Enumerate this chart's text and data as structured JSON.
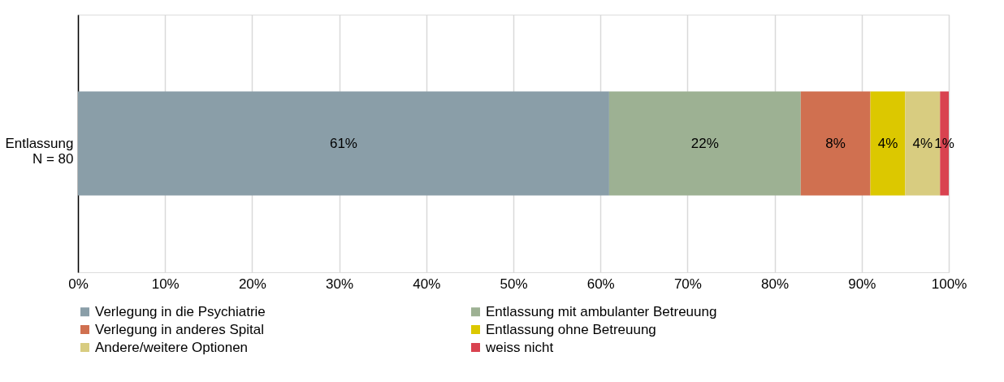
{
  "chart_data": {
    "type": "bar",
    "orientation": "horizontal",
    "stacked": true,
    "categories": [
      "Entlassung\nN = 80"
    ],
    "series": [
      {
        "name": "Verlegung in die Psychiatrie",
        "color": "#8a9ea8",
        "values": [
          61
        ],
        "value_labels": [
          "61%"
        ]
      },
      {
        "name": "Entlassung mit ambulanter Betreuung",
        "color": "#9db193",
        "values": [
          22
        ],
        "value_labels": [
          "22%"
        ]
      },
      {
        "name": "Verlegung in anderes Spital",
        "color": "#d07050",
        "values": [
          8
        ],
        "value_labels": [
          "8%"
        ]
      },
      {
        "name": "Entlassung ohne Betreuung",
        "color": "#dcc800",
        "values": [
          4
        ],
        "value_labels": [
          "4%"
        ]
      },
      {
        "name": "Andere/weitere Optionen",
        "color": "#d8cc80",
        "values": [
          4
        ],
        "value_labels": [
          "4%"
        ]
      },
      {
        "name": "weiss nicht",
        "color": "#d94350",
        "values": [
          1
        ],
        "value_labels": [
          "1%"
        ]
      }
    ],
    "xlim": [
      0,
      100
    ],
    "xticks": [
      {
        "value": 0,
        "label": "0%"
      },
      {
        "value": 10,
        "label": "10%"
      },
      {
        "value": 20,
        "label": "20%"
      },
      {
        "value": 30,
        "label": "30%"
      },
      {
        "value": 40,
        "label": "40%"
      },
      {
        "value": 50,
        "label": "50%"
      },
      {
        "value": 60,
        "label": "60%"
      },
      {
        "value": 70,
        "label": "70%"
      },
      {
        "value": 80,
        "label": "80%"
      },
      {
        "value": 90,
        "label": "90%"
      },
      {
        "value": 100,
        "label": "100%"
      }
    ],
    "grid": "x",
    "legend": "bottom"
  }
}
